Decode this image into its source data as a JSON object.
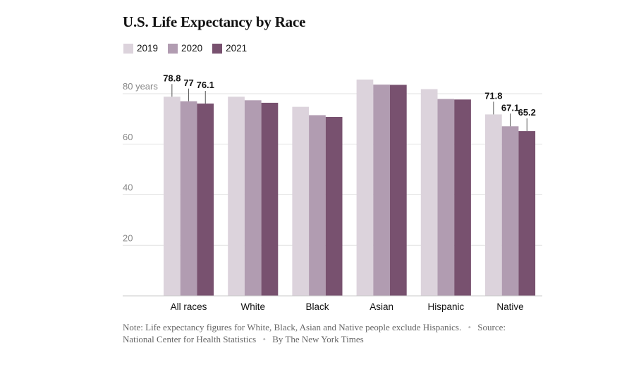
{
  "title": "U.S. Life Expectancy by Race",
  "legend": [
    {
      "label": "2019",
      "color": "#dcd3dc"
    },
    {
      "label": "2020",
      "color": "#b19cb1"
    },
    {
      "label": "2021",
      "color": "#78516f"
    }
  ],
  "chart_data": {
    "type": "bar",
    "title": "U.S. Life Expectancy by Race",
    "categories": [
      "All races",
      "White",
      "Black",
      "Asian",
      "Hispanic",
      "Native"
    ],
    "series": [
      {
        "name": "2019",
        "color": "#dcd3dc",
        "values": [
          78.8,
          78.8,
          74.8,
          85.6,
          81.8,
          71.8
        ]
      },
      {
        "name": "2020",
        "color": "#b19cb1",
        "values": [
          77,
          77.4,
          71.5,
          83.6,
          77.9,
          67.1
        ]
      },
      {
        "name": "2021",
        "color": "#78516f",
        "values": [
          76.1,
          76.4,
          70.8,
          83.5,
          77.7,
          65.2
        ]
      }
    ],
    "ylim": [
      0,
      80
    ],
    "yticks": [
      20,
      40,
      60,
      80
    ],
    "ytick_labels": [
      "20",
      "40",
      "60",
      "80 years"
    ],
    "grid": true,
    "legend_position": "top-left",
    "data_labels": [
      {
        "category": "All races",
        "series": "2019",
        "text": "78.8"
      },
      {
        "category": "All races",
        "series": "2020",
        "text": "77"
      },
      {
        "category": "All races",
        "series": "2021",
        "text": "76.1"
      },
      {
        "category": "Native",
        "series": "2019",
        "text": "71.8"
      },
      {
        "category": "Native",
        "series": "2020",
        "text": "67.1"
      },
      {
        "category": "Native",
        "series": "2021",
        "text": "65.2"
      }
    ]
  },
  "footer": {
    "note": "Note: Life expectancy figures for White, Black, Asian and Native people exclude Hispanics.",
    "source": "Source: National Center for Health Statistics",
    "credit": "By The New York Times"
  }
}
